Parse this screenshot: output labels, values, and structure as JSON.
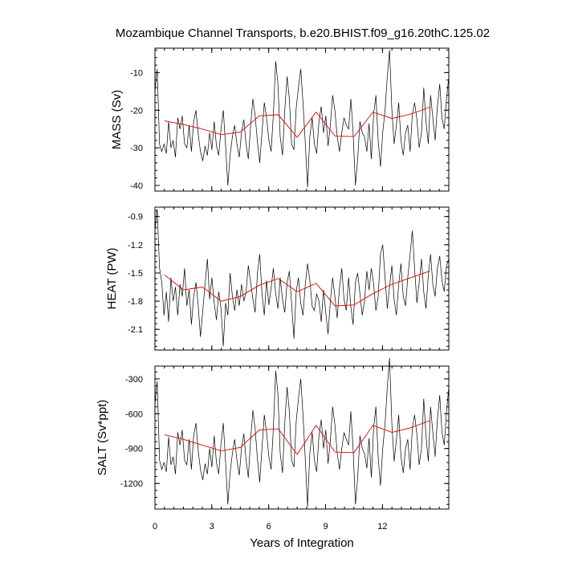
{
  "chart_data": {
    "type": "line",
    "title": "Mozambique Channel Transports, b.e20.BHIST.f09_g16.20thC.125.02",
    "xlabel": "Years of Integration",
    "xlim": [
      0,
      15.5
    ],
    "xticks": [
      0,
      3,
      6,
      9,
      12
    ],
    "xtick_labels": [
      "0",
      "3",
      "6",
      "9",
      "12"
    ],
    "grid": false,
    "colors": {
      "monthly": "#000000",
      "annual_mean": "#e00000"
    },
    "panels": [
      {
        "id": "mass",
        "ylabel": "MASS (Sv)",
        "ylim": [
          -41.5,
          -3.5
        ],
        "yticks": [
          -40,
          -30,
          -20,
          -10
        ],
        "ytick_labels": [
          "-40",
          "-30",
          "-20",
          "-10"
        ],
        "series": [
          {
            "kind": "monthly",
            "values": [
              -15.0,
              -9.0,
              -29.0,
              -31.0,
              -29.0,
              -31.5,
              -23.0,
              -30.0,
              -28.0,
              -32.5,
              -22.0,
              -25.0,
              -21.5,
              -29.0,
              -30.0,
              -24.0,
              -31.0,
              -23.0,
              -20.0,
              -26.5,
              -31.0,
              -33.5,
              -29.5,
              -32.0,
              -26.0,
              -30.5,
              -23.0,
              -29.5,
              -32.0,
              -25.0,
              -20.0,
              -29.5,
              -40.0,
              -32.0,
              -27.0,
              -24.0,
              -29.0,
              -32.5,
              -26.0,
              -22.5,
              -29.0,
              -33.0,
              -24.0,
              -17.0,
              -21.5,
              -28.5,
              -34.0,
              -26.0,
              -18.0,
              -22.0,
              -28.0,
              -31.0,
              -21.0,
              -7.0,
              -13.0,
              -27.0,
              -32.0,
              -20.0,
              -11.0,
              -17.0,
              -29.0,
              -30.5,
              -19.5,
              -14.0,
              -9.0,
              -18.0,
              -29.0,
              -40.5,
              -27.0,
              -22.0,
              -29.0,
              -31.5,
              -23.0,
              -19.0,
              -26.0,
              -21.5,
              -29.5,
              -24.0,
              -16.0,
              -20.0,
              -27.0,
              -31.0,
              -26.0,
              -22.0,
              -24.0,
              -25.0,
              -17.0,
              -26.0,
              -40.0,
              -33.0,
              -23.0,
              -26.0,
              -27.0,
              -31.0,
              -23.5,
              -33.0,
              -21.0,
              -16.0,
              -28.0,
              -35.0,
              -26.0,
              -20.0,
              -11.0,
              -4.0,
              -20.0,
              -29.0,
              -24.0,
              -18.0,
              -28.0,
              -32.0,
              -26.0,
              -24.0,
              -31.0,
              -21.0,
              -18.0,
              -22.5,
              -30.0,
              -26.0,
              -14.0,
              -23.0,
              -29.0,
              -16.0,
              -22.0,
              -28.0,
              -19.0,
              -13.0,
              -22.0,
              -25.0,
              -17.0,
              -11.0
            ]
          },
          {
            "kind": "annual_mean",
            "values": [
              -22.8,
              -23.8,
              -25.0,
              -26.5,
              -25.8,
              -21.5,
              -21.2,
              -27.2,
              -20.5,
              -26.9,
              -27.0,
              -20.5,
              -22.2,
              -21.0,
              -19.2
            ]
          }
        ]
      },
      {
        "id": "heat",
        "ylabel": "HEAT (PW)",
        "ylim": [
          -2.32,
          -0.8
        ],
        "yticks": [
          -2.1,
          -1.8,
          -1.5,
          -1.2,
          -0.9
        ],
        "ytick_labels": [
          "-2.1",
          "-1.8",
          "-1.5",
          "-1.2",
          "-0.9"
        ],
        "series": [
          {
            "kind": "monthly",
            "values": [
              -1.05,
              -0.82,
              -1.45,
              -1.6,
              -1.95,
              -1.7,
              -2.02,
              -1.55,
              -1.8,
              -1.65,
              -1.95,
              -1.62,
              -1.75,
              -1.45,
              -1.85,
              -1.68,
              -2.05,
              -1.75,
              -1.6,
              -1.85,
              -2.18,
              -1.9,
              -1.62,
              -1.35,
              -1.78,
              -1.55,
              -1.82,
              -2.0,
              -1.7,
              -1.88,
              -2.28,
              -1.82,
              -1.95,
              -1.5,
              -1.75,
              -1.9,
              -1.68,
              -1.85,
              -1.62,
              -1.8,
              -1.7,
              -1.42,
              -1.6,
              -1.78,
              -1.92,
              -1.5,
              -1.3,
              -1.72,
              -1.95,
              -1.58,
              -1.84,
              -1.66,
              -1.45,
              -1.72,
              -1.88,
              -1.55,
              -1.78,
              -1.92,
              -1.6,
              -1.48,
              -1.82,
              -2.2,
              -1.7,
              -1.55,
              -1.82,
              -1.95,
              -1.62,
              -1.4,
              -1.58,
              -1.85,
              -1.9,
              -1.72,
              -1.8,
              -2.02,
              -1.68,
              -1.92,
              -2.15,
              -1.8,
              -1.55,
              -1.75,
              -1.98,
              -1.66,
              -1.45,
              -1.78,
              -1.9,
              -1.55,
              -1.86,
              -2.05,
              -1.6,
              -1.5,
              -1.72,
              -1.95,
              -1.8,
              -1.48,
              -1.68,
              -1.45,
              -1.62,
              -1.9,
              -1.75,
              -1.3,
              -1.2,
              -1.55,
              -1.88,
              -1.65,
              -1.42,
              -1.78,
              -1.95,
              -1.62,
              -1.4,
              -1.75,
              -1.85,
              -1.55,
              -1.3,
              -1.05,
              -1.45,
              -1.82,
              -1.6,
              -1.35,
              -1.7,
              -1.88,
              -1.52,
              -1.3,
              -1.62,
              -1.75,
              -1.45,
              -1.32,
              -1.58,
              -1.7,
              -1.42,
              -1.35
            ]
          },
          {
            "kind": "annual_mean",
            "values": [
              -1.52,
              -1.68,
              -1.65,
              -1.8,
              -1.75,
              -1.63,
              -1.56,
              -1.7,
              -1.61,
              -1.85,
              -1.84,
              -1.72,
              -1.62,
              -1.55,
              -1.48
            ]
          }
        ]
      },
      {
        "id": "salt",
        "ylabel": "SALT (Sv*ppt)",
        "ylim": [
          -1420,
          -190
        ],
        "yticks": [
          -1200,
          -900,
          -600,
          -300
        ],
        "ytick_labels": [
          "-1200",
          "-900",
          "-600",
          "-300"
        ],
        "series": [
          {
            "kind": "monthly",
            "values": [
              -520,
              -320,
              -1000,
              -1080,
              -1020,
              -1100,
              -800,
              -1040,
              -970,
              -1120,
              -760,
              -870,
              -740,
              -1000,
              -1040,
              -820,
              -1080,
              -790,
              -680,
              -920,
              -1080,
              -1170,
              -1030,
              -1120,
              -900,
              -1060,
              -790,
              -1020,
              -1120,
              -860,
              -680,
              -1020,
              -1380,
              -1110,
              -940,
              -820,
              -1000,
              -1130,
              -900,
              -770,
              -1000,
              -1150,
              -820,
              -570,
              -730,
              -990,
              -1190,
              -900,
              -610,
              -760,
              -970,
              -1080,
              -720,
              -230,
              -430,
              -940,
              -1110,
              -680,
              -370,
              -580,
              -1000,
              -1060,
              -670,
              -470,
              -300,
              -610,
              -1000,
              -1400,
              -940,
              -760,
              -1000,
              -1100,
              -790,
              -650,
              -900,
              -740,
              -1030,
              -830,
              -540,
              -690,
              -940,
              -1080,
              -900,
              -760,
              -820,
              -870,
              -580,
              -900,
              -1380,
              -1150,
              -790,
              -900,
              -940,
              -1070,
              -810,
              -1150,
              -720,
              -540,
              -970,
              -1220,
              -900,
              -690,
              -370,
              -120,
              -690,
              -1010,
              -830,
              -610,
              -970,
              -1110,
              -900,
              -820,
              -1080,
              -720,
              -610,
              -780,
              -1040,
              -900,
              -470,
              -790,
              -1010,
              -540,
              -760,
              -970,
              -650,
              -440,
              -760,
              -870,
              -580,
              -370
            ]
          },
          {
            "kind": "annual_mean",
            "values": [
              -780,
              -820,
              -870,
              -920,
              -890,
              -740,
              -730,
              -950,
              -700,
              -930,
              -935,
              -700,
              -760,
              -720,
              -660
            ]
          }
        ]
      }
    ]
  }
}
